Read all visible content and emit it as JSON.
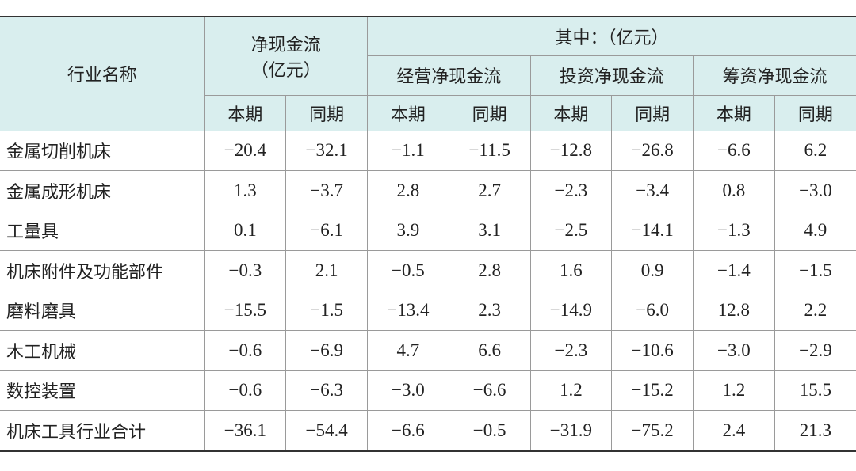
{
  "header": {
    "name_col": "行业名称",
    "net_flow": [
      "净现金流",
      "（亿元）"
    ],
    "of_which": "其中：（亿元）",
    "groups": [
      "经营净现金流",
      "投资净现金流",
      "筹资净现金流"
    ],
    "periods": [
      "本期",
      "同期",
      "本期",
      "同期",
      "本期",
      "同期",
      "本期",
      "同期"
    ]
  },
  "table": {
    "rows": [
      {
        "name": "金属切削机床",
        "values": [
          "−20.4",
          "−32.1",
          "−1.1",
          "−11.5",
          "−12.8",
          "−26.8",
          "−6.6",
          "6.2"
        ]
      },
      {
        "name": "金属成形机床",
        "values": [
          "1.3",
          "−3.7",
          "2.8",
          "2.7",
          "−2.3",
          "−3.4",
          "0.8",
          "−3.0"
        ]
      },
      {
        "name": "工量具",
        "values": [
          "0.1",
          "−6.1",
          "3.9",
          "3.1",
          "−2.5",
          "−14.1",
          "−1.3",
          "4.9"
        ]
      },
      {
        "name": "机床附件及功能部件",
        "values": [
          "−0.3",
          "2.1",
          "−0.5",
          "2.8",
          "1.6",
          "0.9",
          "−1.4",
          "−1.5"
        ]
      },
      {
        "name": "磨料磨具",
        "values": [
          "−15.5",
          "−1.5",
          "−13.4",
          "2.3",
          "−14.9",
          "−6.0",
          "12.8",
          "2.2"
        ]
      },
      {
        "name": "木工机械",
        "values": [
          "−0.6",
          "−6.9",
          "4.7",
          "6.6",
          "−2.3",
          "−10.6",
          "−3.0",
          "−2.9"
        ]
      },
      {
        "name": "数控装置",
        "values": [
          "−0.6",
          "−6.3",
          "−3.0",
          "−6.6",
          "1.2",
          "−15.2",
          "1.2",
          "15.5"
        ]
      },
      {
        "name": "机床工具行业合计",
        "values": [
          "−36.1",
          "−54.4",
          "−6.6",
          "−0.5",
          "−31.9",
          "−75.2",
          "2.4",
          "21.3"
        ]
      }
    ]
  }
}
